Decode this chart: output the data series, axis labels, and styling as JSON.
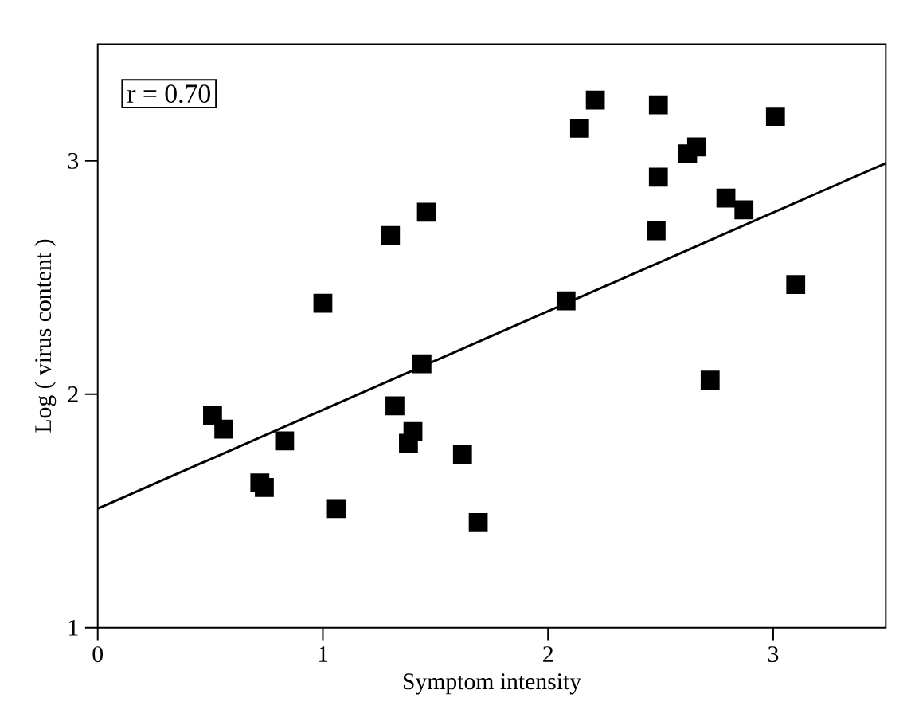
{
  "chart_data": {
    "type": "scatter",
    "xlabel": "Symptom intensity",
    "ylabel": "Log ( virus content )",
    "annotations": [
      "r = 0.70"
    ],
    "xlim": [
      0,
      3.5
    ],
    "ylim": [
      1,
      3.5
    ],
    "xticks": [
      0,
      1,
      2,
      3
    ],
    "yticks": [
      1,
      2,
      3
    ],
    "marker": "square",
    "series": [
      {
        "color": "#000000",
        "x": [
          1.46,
          1.3,
          1.0,
          1.44,
          2.21,
          2.14,
          2.49,
          3.01,
          2.66,
          2.62,
          2.49,
          2.79,
          2.87,
          2.48,
          3.1,
          2.08,
          2.72,
          0.51,
          0.56,
          0.83,
          0.72,
          0.74,
          1.06,
          1.32,
          1.4,
          1.38,
          1.62,
          1.69
        ],
        "values": [
          2.78,
          2.68,
          2.39,
          2.13,
          3.26,
          3.14,
          3.24,
          3.19,
          3.06,
          3.03,
          2.93,
          2.84,
          2.79,
          2.7,
          2.47,
          2.4,
          2.06,
          1.91,
          1.85,
          1.8,
          1.62,
          1.6,
          1.51,
          1.95,
          1.84,
          1.79,
          1.74,
          1.45
        ]
      },
      {
        "type": "line",
        "color": "#000000",
        "marker": "none",
        "line_style": "solid",
        "x": [
          0,
          3.5
        ],
        "values": [
          1.51,
          2.99
        ]
      }
    ]
  }
}
